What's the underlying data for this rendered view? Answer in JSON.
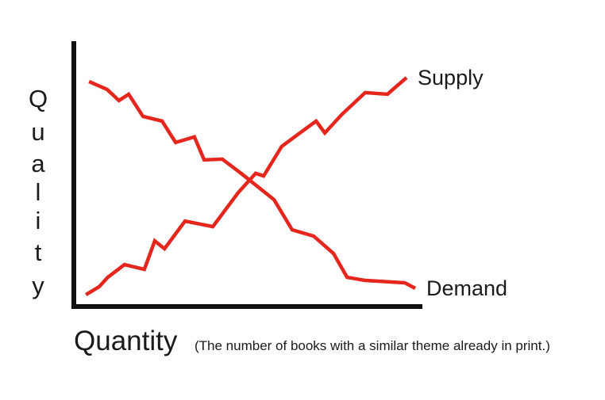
{
  "chart_data": {
    "type": "line",
    "x_label": "Quantity",
    "x_note": "(The number of books with a similar theme already in print.)",
    "y_label": "Quality",
    "xlim": [
      0,
      100
    ],
    "ylim": [
      0,
      100
    ],
    "series": [
      {
        "name": "Supply",
        "color": "#e5261c",
        "x": [
          3.7,
          7.5,
          10.0,
          14.8,
          20.5,
          23.5,
          26.3,
          32.2,
          40.2,
          47.5,
          52.5,
          54.8,
          60.0,
          64.6,
          69.9,
          72.4,
          77.2,
          84.0,
          90.4,
          95.9
        ],
        "values": [
          4.8,
          7.8,
          11.4,
          16.2,
          14.4,
          25.2,
          22.2,
          32.7,
          30.6,
          43.5,
          50.8,
          49.8,
          61.0,
          65.5,
          70.6,
          66.1,
          73.0,
          81.4,
          80.8,
          87.1
        ]
      },
      {
        "name": "Demand",
        "color": "#e5261c",
        "x": [
          4.6,
          9.8,
          13.2,
          16.0,
          20.1,
          25.6,
          29.5,
          34.9,
          37.7,
          42.9,
          48.6,
          52.1,
          57.8,
          63.0,
          69.2,
          74.9,
          78.8,
          84.0,
          95.4,
          98.4
        ],
        "values": [
          85.6,
          82.6,
          78.4,
          80.8,
          72.4,
          70.6,
          62.5,
          64.6,
          55.9,
          56.2,
          50.5,
          46.8,
          40.8,
          29.4,
          27.0,
          20.4,
          11.4,
          10.2,
          9.3,
          7.2
        ]
      }
    ]
  }
}
